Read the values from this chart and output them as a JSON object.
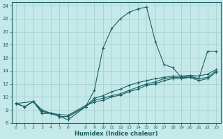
{
  "xlabel": "Humidex (Indice chaleur)",
  "bg_color": "#c5e8e8",
  "grid_color": "#a8d0d0",
  "line_color": "#1a6060",
  "xlim": [
    -0.5,
    23.5
  ],
  "ylim": [
    6,
    24.5
  ],
  "xticks": [
    0,
    1,
    2,
    3,
    4,
    5,
    6,
    8,
    9,
    10,
    11,
    12,
    13,
    14,
    15,
    16,
    17,
    18,
    19,
    20,
    21,
    22,
    23
  ],
  "yticks": [
    6,
    8,
    10,
    12,
    14,
    16,
    18,
    20,
    22,
    24
  ],
  "main_curve_x": [
    0,
    1,
    2,
    3,
    4,
    5,
    6,
    8,
    9,
    10,
    11,
    12,
    13,
    14,
    15,
    16,
    17,
    18,
    19,
    20,
    21,
    22,
    23
  ],
  "main_curve_y": [
    9.0,
    8.5,
    9.3,
    8.0,
    7.5,
    7.0,
    6.5,
    8.5,
    11.0,
    17.5,
    20.5,
    22.0,
    23.0,
    23.5,
    23.8,
    18.5,
    15.0,
    14.5,
    13.0,
    13.2,
    12.8,
    17.0,
    17.0
  ],
  "curve2_x": [
    0,
    1,
    2,
    3,
    4,
    5,
    6,
    8,
    9,
    10,
    11,
    12,
    13,
    14,
    15,
    16,
    17,
    18,
    19,
    20,
    21,
    22,
    23
  ],
  "curve2_y": [
    9.0,
    8.5,
    9.3,
    7.5,
    7.5,
    7.0,
    7.0,
    8.5,
    9.8,
    10.2,
    10.8,
    11.2,
    11.8,
    12.2,
    12.5,
    12.8,
    13.0,
    13.2,
    13.2,
    13.3,
    13.2,
    13.5,
    14.2
  ],
  "curve3_x": [
    0,
    1,
    2,
    3,
    4,
    5,
    6,
    8,
    9,
    10,
    11,
    12,
    13,
    14,
    15,
    16,
    17,
    18,
    19,
    20,
    21,
    22,
    23
  ],
  "curve3_y": [
    9.0,
    8.5,
    9.3,
    7.5,
    7.5,
    7.0,
    7.0,
    8.5,
    9.5,
    9.8,
    10.2,
    10.5,
    11.0,
    11.5,
    12.0,
    12.3,
    12.8,
    13.0,
    13.0,
    13.0,
    12.8,
    13.0,
    14.0
  ],
  "curve4_x": [
    0,
    2,
    3,
    4,
    5,
    6,
    8,
    9,
    10,
    11,
    12,
    13,
    14,
    15,
    16,
    17,
    18,
    19,
    20,
    21,
    22,
    23
  ],
  "curve4_y": [
    9.0,
    9.3,
    7.8,
    7.5,
    7.3,
    7.2,
    8.7,
    9.2,
    9.5,
    10.0,
    10.3,
    10.8,
    11.2,
    11.8,
    12.0,
    12.5,
    12.8,
    12.8,
    13.0,
    12.5,
    12.8,
    13.8
  ]
}
